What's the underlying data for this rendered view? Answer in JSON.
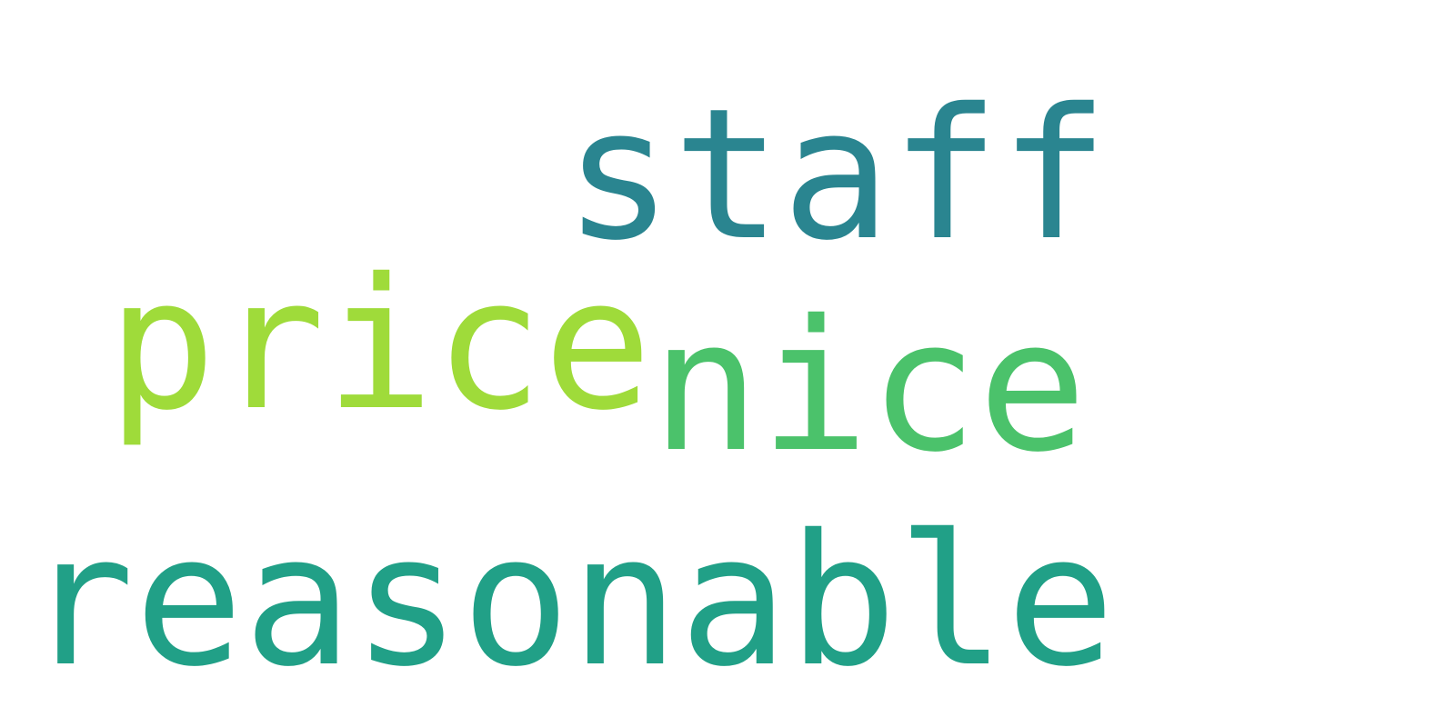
{
  "wordcloud": {
    "words": [
      {
        "id": "staff",
        "text": "staff",
        "color": "#2a8590"
      },
      {
        "id": "price",
        "text": "price",
        "color": "#9fdb3a"
      },
      {
        "id": "nice",
        "text": "nice",
        "color": "#4bc26b"
      },
      {
        "id": "reasonable",
        "text": "reasonable",
        "color": "#21a087"
      }
    ]
  }
}
